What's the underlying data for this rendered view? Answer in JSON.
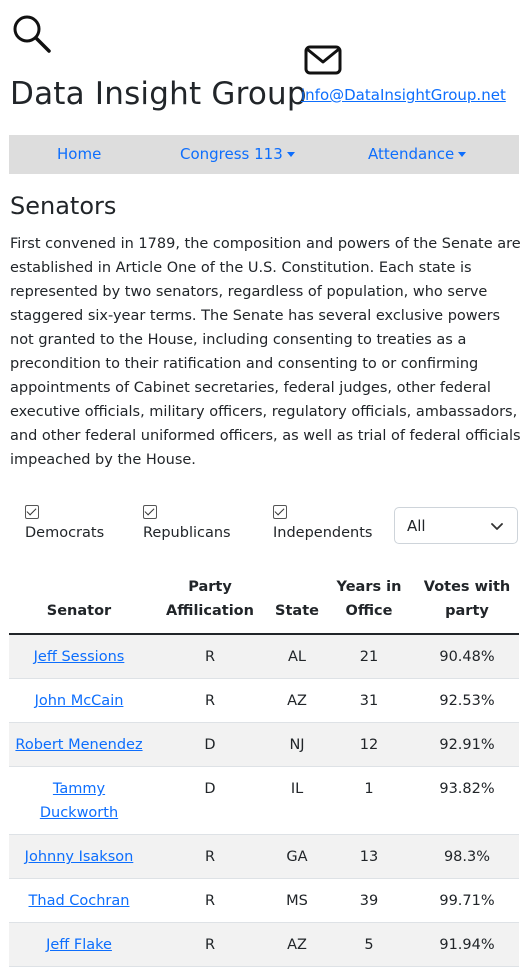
{
  "header": {
    "title": "Data Insight Group",
    "email": "info@DataInsightGroup.net",
    "search_icon": "search-icon",
    "mail_icon": "mail-icon"
  },
  "nav": {
    "home": "Home",
    "congress": "Congress 113",
    "attendance": "Attendance"
  },
  "section": {
    "title": "Senators",
    "description": "First convened in 1789, the composition and powers of the Senate are established in Article One of the U.S. Constitution. Each state is represented by two senators, regardless of population, who serve staggered six-year terms. The Senate has several exclusive powers not granted to the House, including consenting to treaties as a precondition to their ratification and consenting to or confirming appointments of Cabinet secretaries, federal judges, other federal executive officials, military officers, regulatory officials, ambassadors, and other federal uniformed officers, as well as trial of federal officials impeached by the House."
  },
  "filters": {
    "democrats": "Democrats",
    "republicans": "Republicans",
    "independents": "Independents",
    "state_selected": "All"
  },
  "table": {
    "headers": [
      "Senator",
      "Party Affilication",
      "State",
      "Years in Office",
      "Votes with party"
    ],
    "rows": [
      {
        "name": "Jeff Sessions",
        "party": "R",
        "state": "AL",
        "years": "21",
        "votes": "90.48%"
      },
      {
        "name": "John McCain",
        "party": "R",
        "state": "AZ",
        "years": "31",
        "votes": "92.53%"
      },
      {
        "name": "Robert Menendez",
        "party": "D",
        "state": "NJ",
        "years": "12",
        "votes": "92.91%"
      },
      {
        "name": "Tammy Duckworth",
        "party": "D",
        "state": "IL",
        "years": "1",
        "votes": "93.82%"
      },
      {
        "name": "Johnny Isakson",
        "party": "R",
        "state": "GA",
        "years": "13",
        "votes": "98.3%"
      },
      {
        "name": "Thad Cochran",
        "party": "R",
        "state": "MS",
        "years": "39",
        "votes": "99.71%"
      },
      {
        "name": "Jeff Flake",
        "party": "R",
        "state": "AZ",
        "years": "5",
        "votes": "91.94%"
      }
    ]
  },
  "colors": {
    "link": "#0d6efd",
    "navbar": "#dddddd",
    "stripe": "#f2f2f2"
  }
}
